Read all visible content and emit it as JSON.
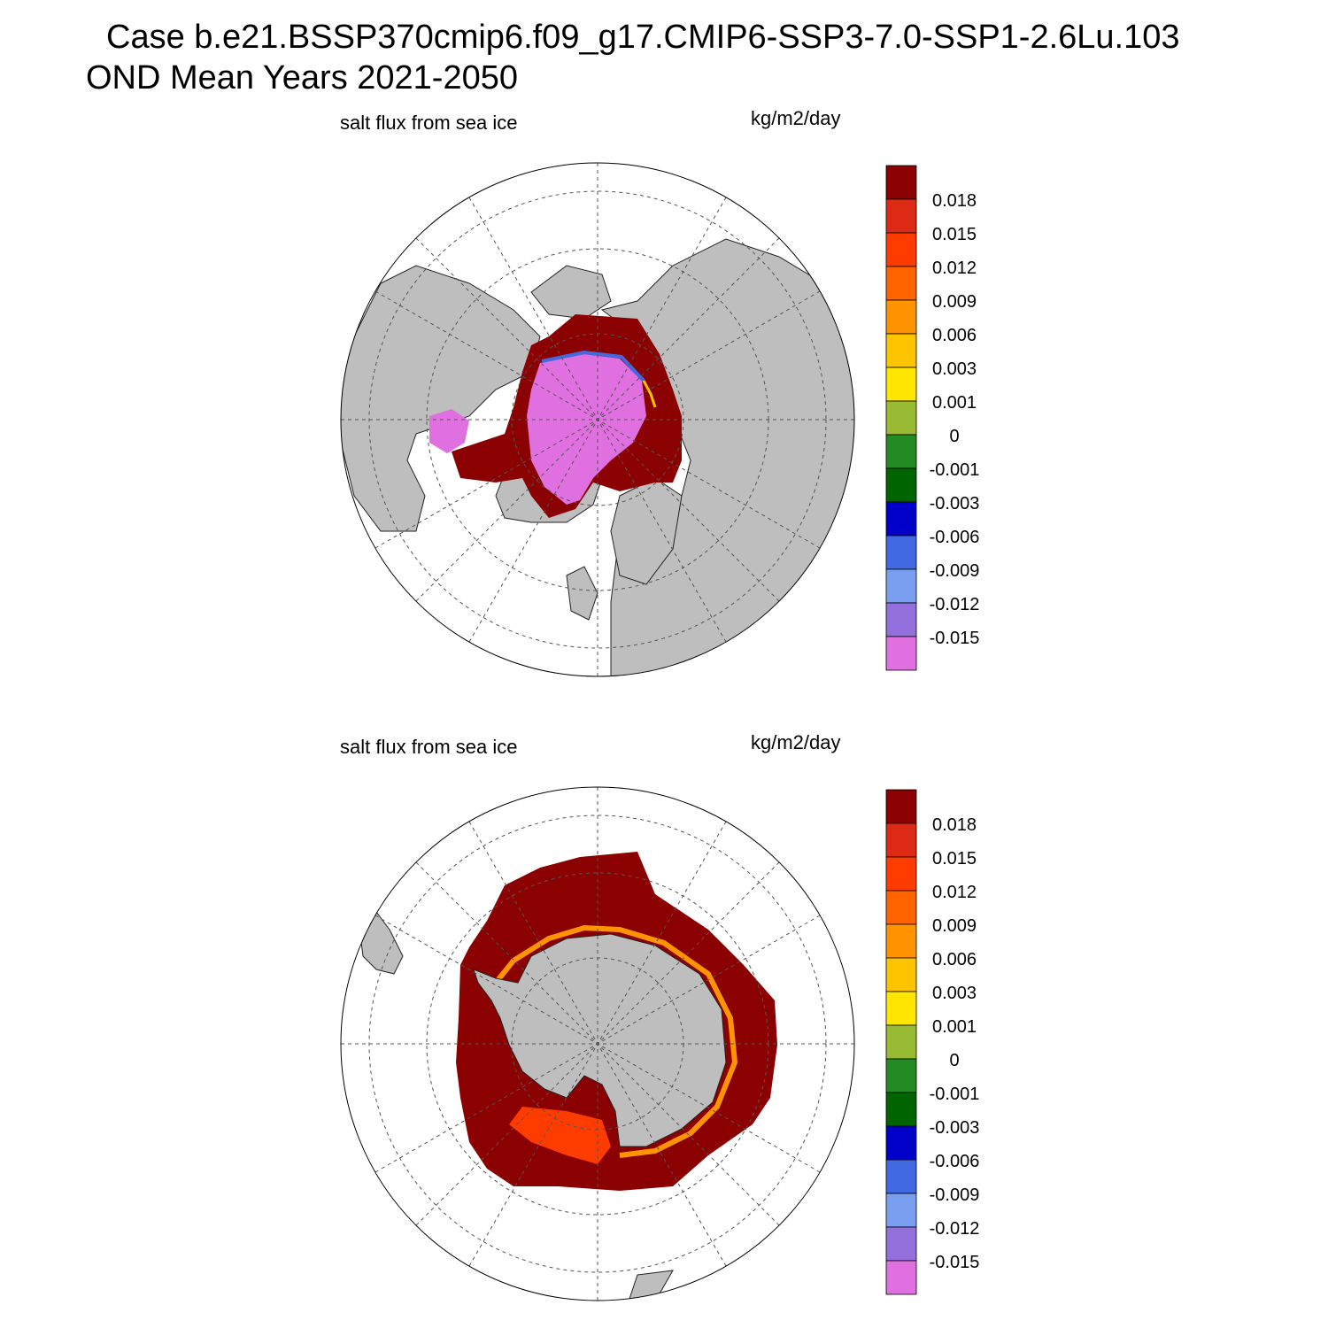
{
  "header": {
    "case_line": "Case b.e21.BSSP370cmip6.f09_g17.CMIP6-SSP3-7.0-SSP1-2.6Lu.103",
    "period_line": "OND Mean   Years 2021-2050"
  },
  "panels": [
    {
      "id": "north",
      "hemisphere": "Northern Hemisphere",
      "variable_label": "salt flux from sea ice",
      "units_label": "kg/m2/day"
    },
    {
      "id": "south",
      "hemisphere": "Southern Hemisphere",
      "variable_label": "salt flux from sea ice",
      "units_label": "kg/m2/day"
    }
  ],
  "colorbar": {
    "labels": [
      "0.018",
      "0.015",
      "0.012",
      "0.009",
      "0.006",
      "0.003",
      "0.001",
      "0",
      "-0.001",
      "-0.003",
      "-0.006",
      "-0.009",
      "-0.012",
      "-0.015"
    ],
    "colors": [
      "#8b0000",
      "#dc2a14",
      "#ff3c00",
      "#ff6400",
      "#ff9400",
      "#ffc400",
      "#ffe600",
      "#99bb33",
      "#228b22",
      "#006400",
      "#0000c8",
      "#4169e1",
      "#7a9ef0",
      "#9370db",
      "#e070e0"
    ]
  },
  "colors": {
    "land": "#bebebe",
    "ocean": "#ffffff",
    "ice_interior": "#e070e0",
    "ice_edge": "#8b0000"
  }
}
